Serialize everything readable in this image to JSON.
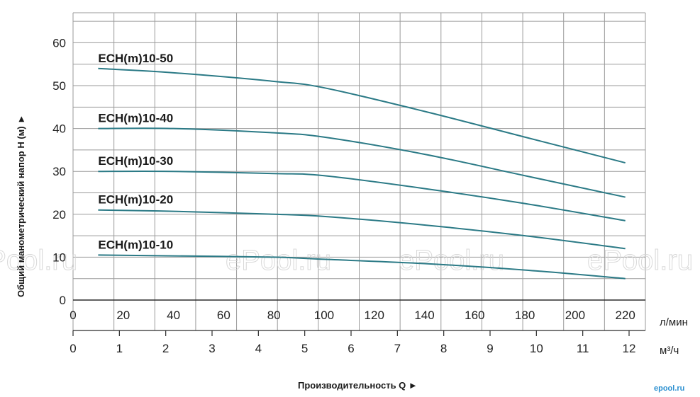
{
  "chart_data": {
    "type": "line",
    "title": "",
    "xlabel": "Производительность Q ►",
    "ylabel": "Общий манометрический напор H (м) ►",
    "xlim": [
      0,
      228
    ],
    "ylim": [
      0,
      67
    ],
    "grid": true,
    "x_ticks_top": [
      "0",
      "20",
      "40",
      "60",
      "80",
      "100",
      "120",
      "140",
      "160",
      "180",
      "200",
      "220"
    ],
    "x_unit_top": "л/мин",
    "x_ticks_bottom": [
      "0",
      "1",
      "2",
      "3",
      "4",
      "5",
      "6",
      "7",
      "8",
      "9",
      "10",
      "11",
      "12"
    ],
    "x_unit_bottom": "м³/ч",
    "y_ticks": [
      "0",
      "10",
      "20",
      "30",
      "40",
      "50",
      "60"
    ],
    "series": [
      {
        "name": "ECH(m)10-50",
        "x": [
          10,
          40,
          80,
          100,
          140,
          180,
          220
        ],
        "y": [
          54,
          53,
          51,
          49.5,
          44,
          38,
          32
        ]
      },
      {
        "name": "ECH(m)10-40",
        "x": [
          10,
          40,
          80,
          100,
          140,
          180,
          220
        ],
        "y": [
          40,
          40,
          39,
          38,
          34,
          29,
          24
        ]
      },
      {
        "name": "ECH(m)10-30",
        "x": [
          10,
          40,
          80,
          100,
          140,
          180,
          220
        ],
        "y": [
          30,
          30,
          29.5,
          29,
          26,
          22.5,
          18.5
        ]
      },
      {
        "name": "ECH(m)10-20",
        "x": [
          10,
          40,
          80,
          100,
          140,
          180,
          220
        ],
        "y": [
          21,
          20.7,
          20,
          19.5,
          17.5,
          15,
          12
        ]
      },
      {
        "name": "ECH(m)10-10",
        "x": [
          10,
          40,
          80,
          100,
          140,
          180,
          220
        ],
        "y": [
          10.5,
          10.3,
          10,
          9.5,
          8.5,
          7,
          5
        ]
      }
    ]
  },
  "watermarks": [
    "ePool.ru",
    "ePool.ru",
    "ePool.ru",
    "ePool.ru"
  ],
  "brand": "epool.ru",
  "colors": {
    "line": "#2b7a86",
    "grid": "#9a9a9a",
    "axis": "#2b2b2b"
  }
}
